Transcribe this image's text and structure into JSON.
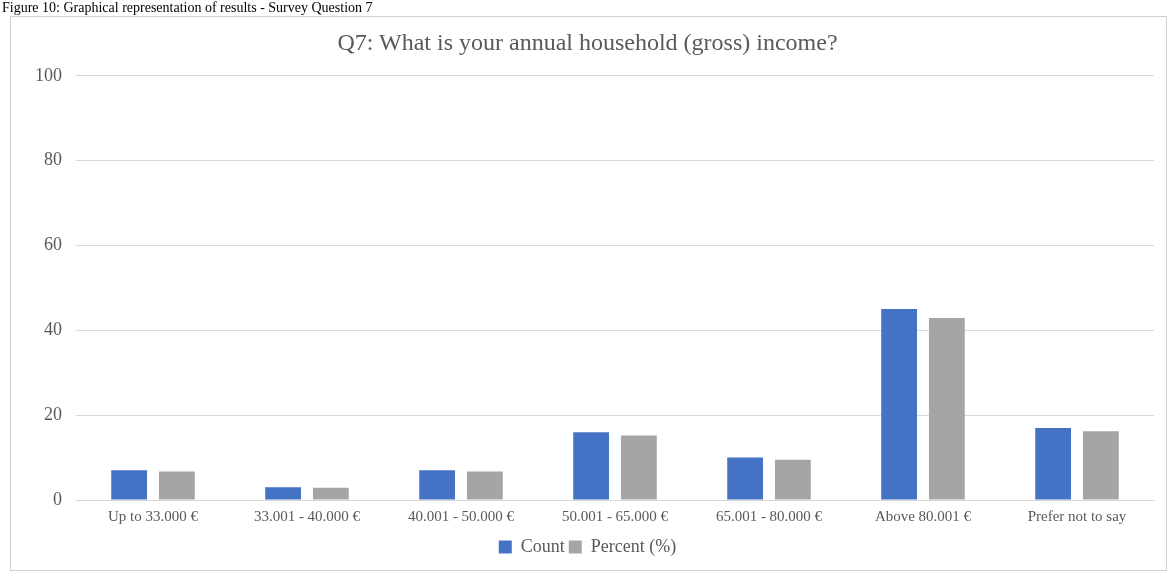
{
  "chart_data": {
    "type": "bar",
    "title": "Q7: What is your annual household (gross) income?",
    "annotations": [
      "Figure 10: Graphical representation of results - Survey Question 7"
    ],
    "categories": [
      "Up to 33.000 €",
      "33.001 - 40.000 €",
      "40.001 - 50.000 €",
      "50.001 - 65.000 €",
      "65.001 - 80.000 €",
      "Above 80.001 €",
      "Prefer not to say"
    ],
    "series": [
      {
        "name": "Count",
        "color": "#4472c4",
        "values": [
          7,
          3,
          7,
          16,
          10,
          45,
          17
        ]
      },
      {
        "name": "Percent (%)",
        "color": "#a5a5a5",
        "values": [
          6.7,
          2.9,
          6.7,
          15.2,
          9.5,
          42.9,
          16.2
        ]
      }
    ],
    "ylim": [
      0,
      100
    ],
    "yticks": [
      0,
      20,
      40,
      60,
      80,
      100
    ],
    "grid": "y",
    "legend": "bottom"
  }
}
